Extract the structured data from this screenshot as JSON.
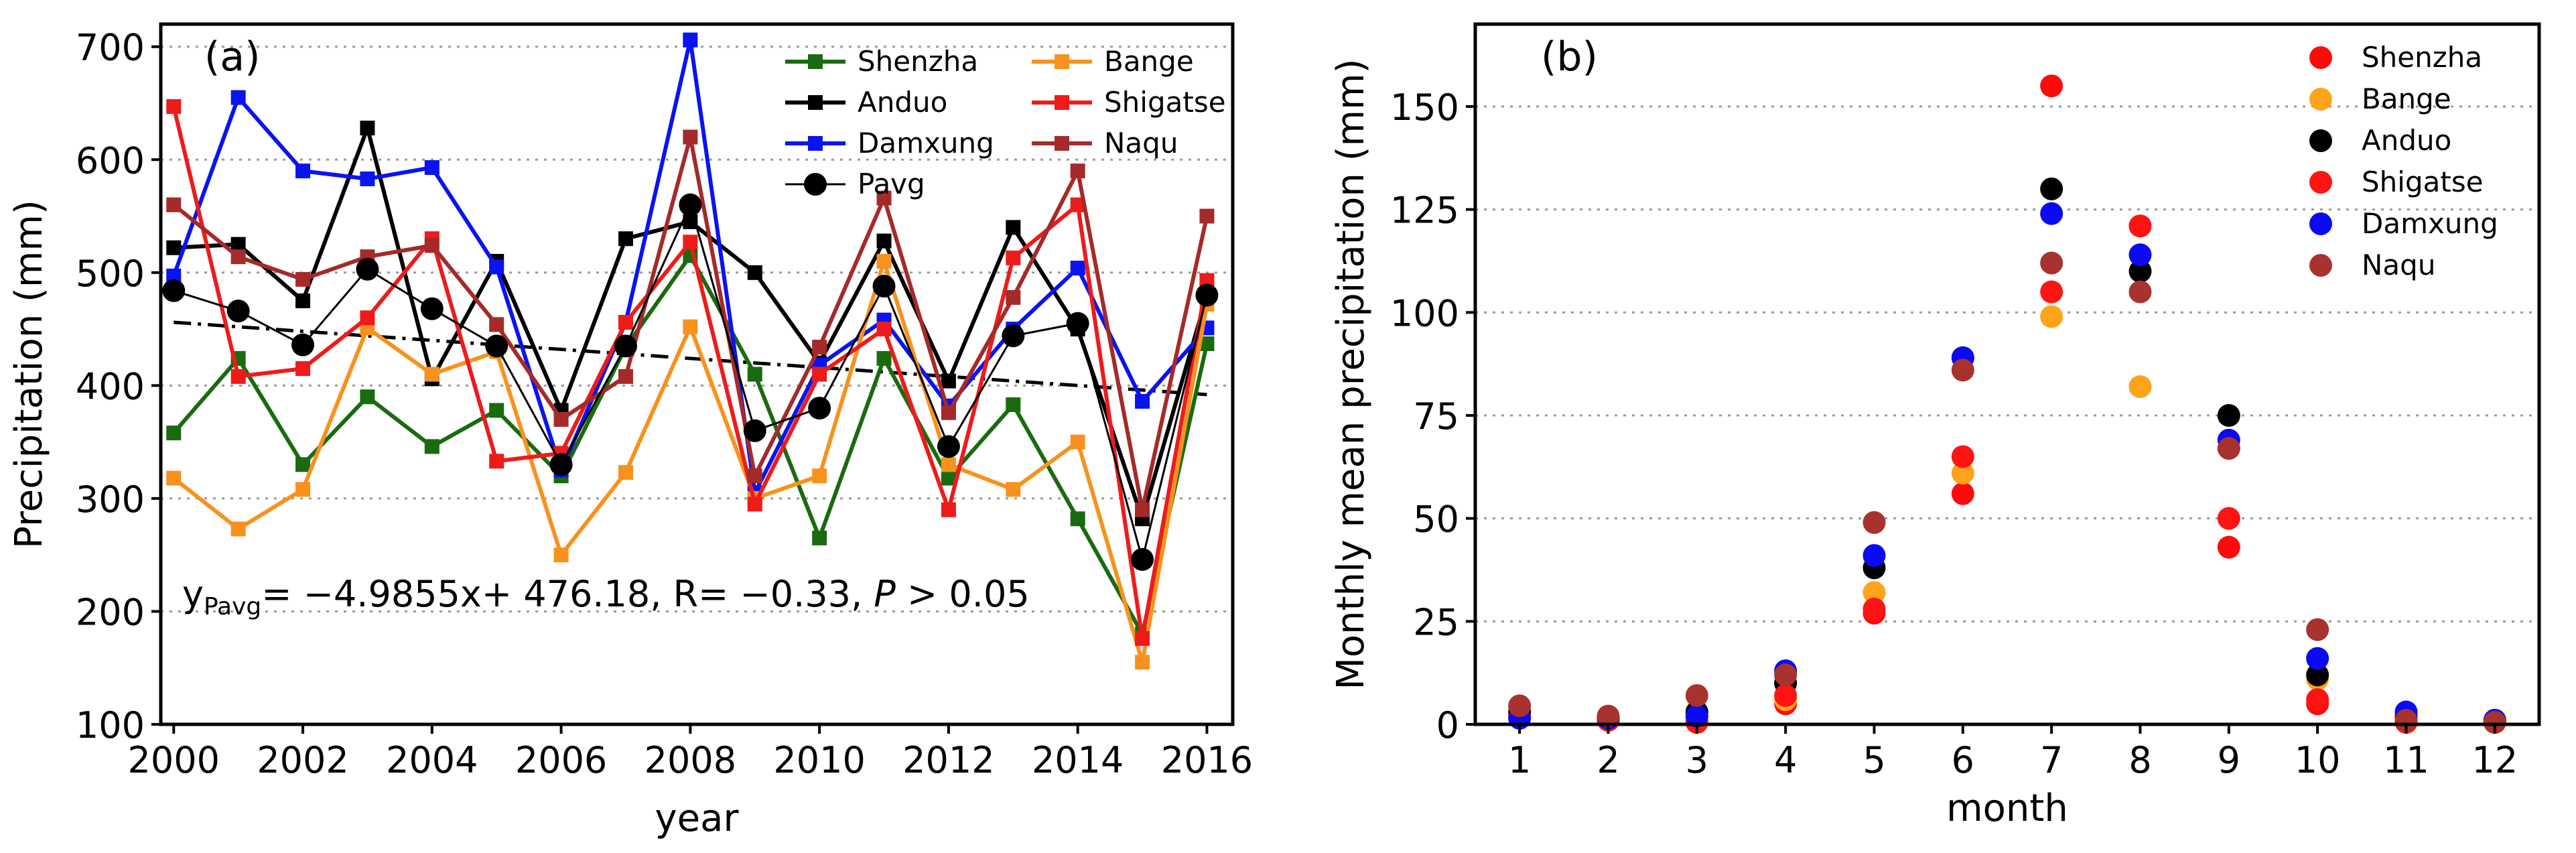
{
  "chart_data": [
    {
      "panel_label": "(a)",
      "type": "line",
      "xlabel": "year",
      "ylabel": "Precipitation  (mm)",
      "xlim": [
        1999.8,
        2016.4
      ],
      "ylim": [
        100,
        720
      ],
      "xticks": [
        "2000",
        "2002",
        "2004",
        "2006",
        "2008",
        "2010",
        "2012",
        "2014",
        "2016"
      ],
      "yticks": [
        "100",
        "200",
        "300",
        "400",
        "500",
        "600",
        "700"
      ],
      "grid": "horizontal dotted",
      "x": [
        2000,
        2001,
        2002,
        2003,
        2004,
        2005,
        2006,
        2007,
        2008,
        2009,
        2010,
        2011,
        2012,
        2013,
        2014,
        2015,
        2016
      ],
      "series": [
        {
          "name": "Shenzha",
          "color": "#1a6b0f",
          "marker": "square",
          "values": [
            358,
            424,
            330,
            390,
            346,
            378,
            320,
            434,
            515,
            410,
            265,
            424,
            318,
            383,
            282,
            180,
            437
          ]
        },
        {
          "name": "Anduo",
          "color": "#000000",
          "marker": "square",
          "values": [
            522,
            525,
            475,
            628,
            406,
            510,
            378,
            530,
            545,
            500,
            420,
            528,
            404,
            540,
            450,
            282,
            480
          ]
        },
        {
          "name": "Damxung",
          "color": "#0a14f0",
          "marker": "square",
          "values": [
            497,
            655,
            590,
            583,
            593,
            505,
            325,
            456,
            706,
            305,
            418,
            458,
            382,
            450,
            504,
            386,
            451
          ]
        },
        {
          "name": "Bange",
          "color": "#f7921e",
          "marker": "square",
          "values": [
            318,
            273,
            308,
            451,
            410,
            430,
            250,
            323,
            452,
            300,
            320,
            510,
            330,
            308,
            350,
            155,
            472
          ]
        },
        {
          "name": "Shigatse",
          "color": "#ee1b1b",
          "marker": "square",
          "values": [
            647,
            408,
            415,
            460,
            530,
            333,
            340,
            456,
            527,
            295,
            410,
            450,
            290,
            513,
            560,
            176,
            493
          ]
        },
        {
          "name": "Naqu",
          "color": "#a52a2a",
          "marker": "square",
          "values": [
            560,
            514,
            494,
            514,
            524,
            454,
            370,
            408,
            620,
            320,
            434,
            566,
            376,
            478,
            590,
            290,
            550
          ]
        },
        {
          "name": "Pavg",
          "color": "#000000",
          "marker": "circle",
          "values": [
            484,
            466,
            436,
            503,
            468,
            435,
            330,
            435,
            560,
            360,
            380,
            488,
            346,
            444,
            455,
            246,
            480
          ]
        }
      ],
      "trend": {
        "label": "Pavg linear trend",
        "start": [
          2000,
          456
        ],
        "end": [
          2016,
          392
        ]
      },
      "annotation": {
        "y": "y",
        "y_sub": "Pavg",
        "equation": "= −4.9855x+ 476.18, R= −0.33, ",
        "p": "P",
        "p_rest": " > 0.05"
      }
    },
    {
      "panel_label": "(b)",
      "type": "scatter",
      "xlabel": "month",
      "ylabel": "Monthly mean precipitation  (mm)",
      "xlim": [
        0.5,
        12.5
      ],
      "ylim": [
        0,
        170
      ],
      "xticks": [
        "1",
        "2",
        "3",
        "4",
        "5",
        "6",
        "7",
        "8",
        "9",
        "10",
        "11",
        "12"
      ],
      "yticks": [
        "0",
        "25",
        "50",
        "75",
        "100",
        "125",
        "150"
      ],
      "grid": "horizontal dotted",
      "x": [
        1,
        2,
        3,
        4,
        5,
        6,
        7,
        8,
        9,
        10,
        11,
        12
      ],
      "series": [
        {
          "name": "Shenzha",
          "color": "#ff0a0a",
          "values": [
            2,
            1,
            0.5,
            5,
            27,
            56,
            155,
            121,
            43,
            5,
            1,
            0.5
          ]
        },
        {
          "name": "Bange",
          "color": "#ffa31a",
          "values": [
            2,
            1.5,
            1,
            6,
            32,
            61,
            99,
            82,
            67,
            11,
            1.5,
            1
          ]
        },
        {
          "name": "Anduo",
          "color": "#000000",
          "values": [
            3,
            1.5,
            3,
            10,
            38,
            89,
            130,
            110,
            75,
            12,
            2,
            1
          ]
        },
        {
          "name": "Shigatse",
          "color": "#ff1414",
          "values": [
            1.5,
            1,
            0.5,
            7,
            28,
            65,
            105,
            121,
            50,
            6,
            0.5,
            0.5
          ]
        },
        {
          "name": "Damxung",
          "color": "#0a0af5",
          "values": [
            1.5,
            1.5,
            2,
            13,
            41,
            89,
            124,
            114,
            69,
            16,
            3,
            1
          ]
        },
        {
          "name": "Naqu",
          "color": "#a8322e",
          "values": [
            4.5,
            2,
            7,
            12,
            49,
            86,
            112,
            105,
            67,
            23,
            1,
            0.5
          ]
        }
      ]
    }
  ]
}
